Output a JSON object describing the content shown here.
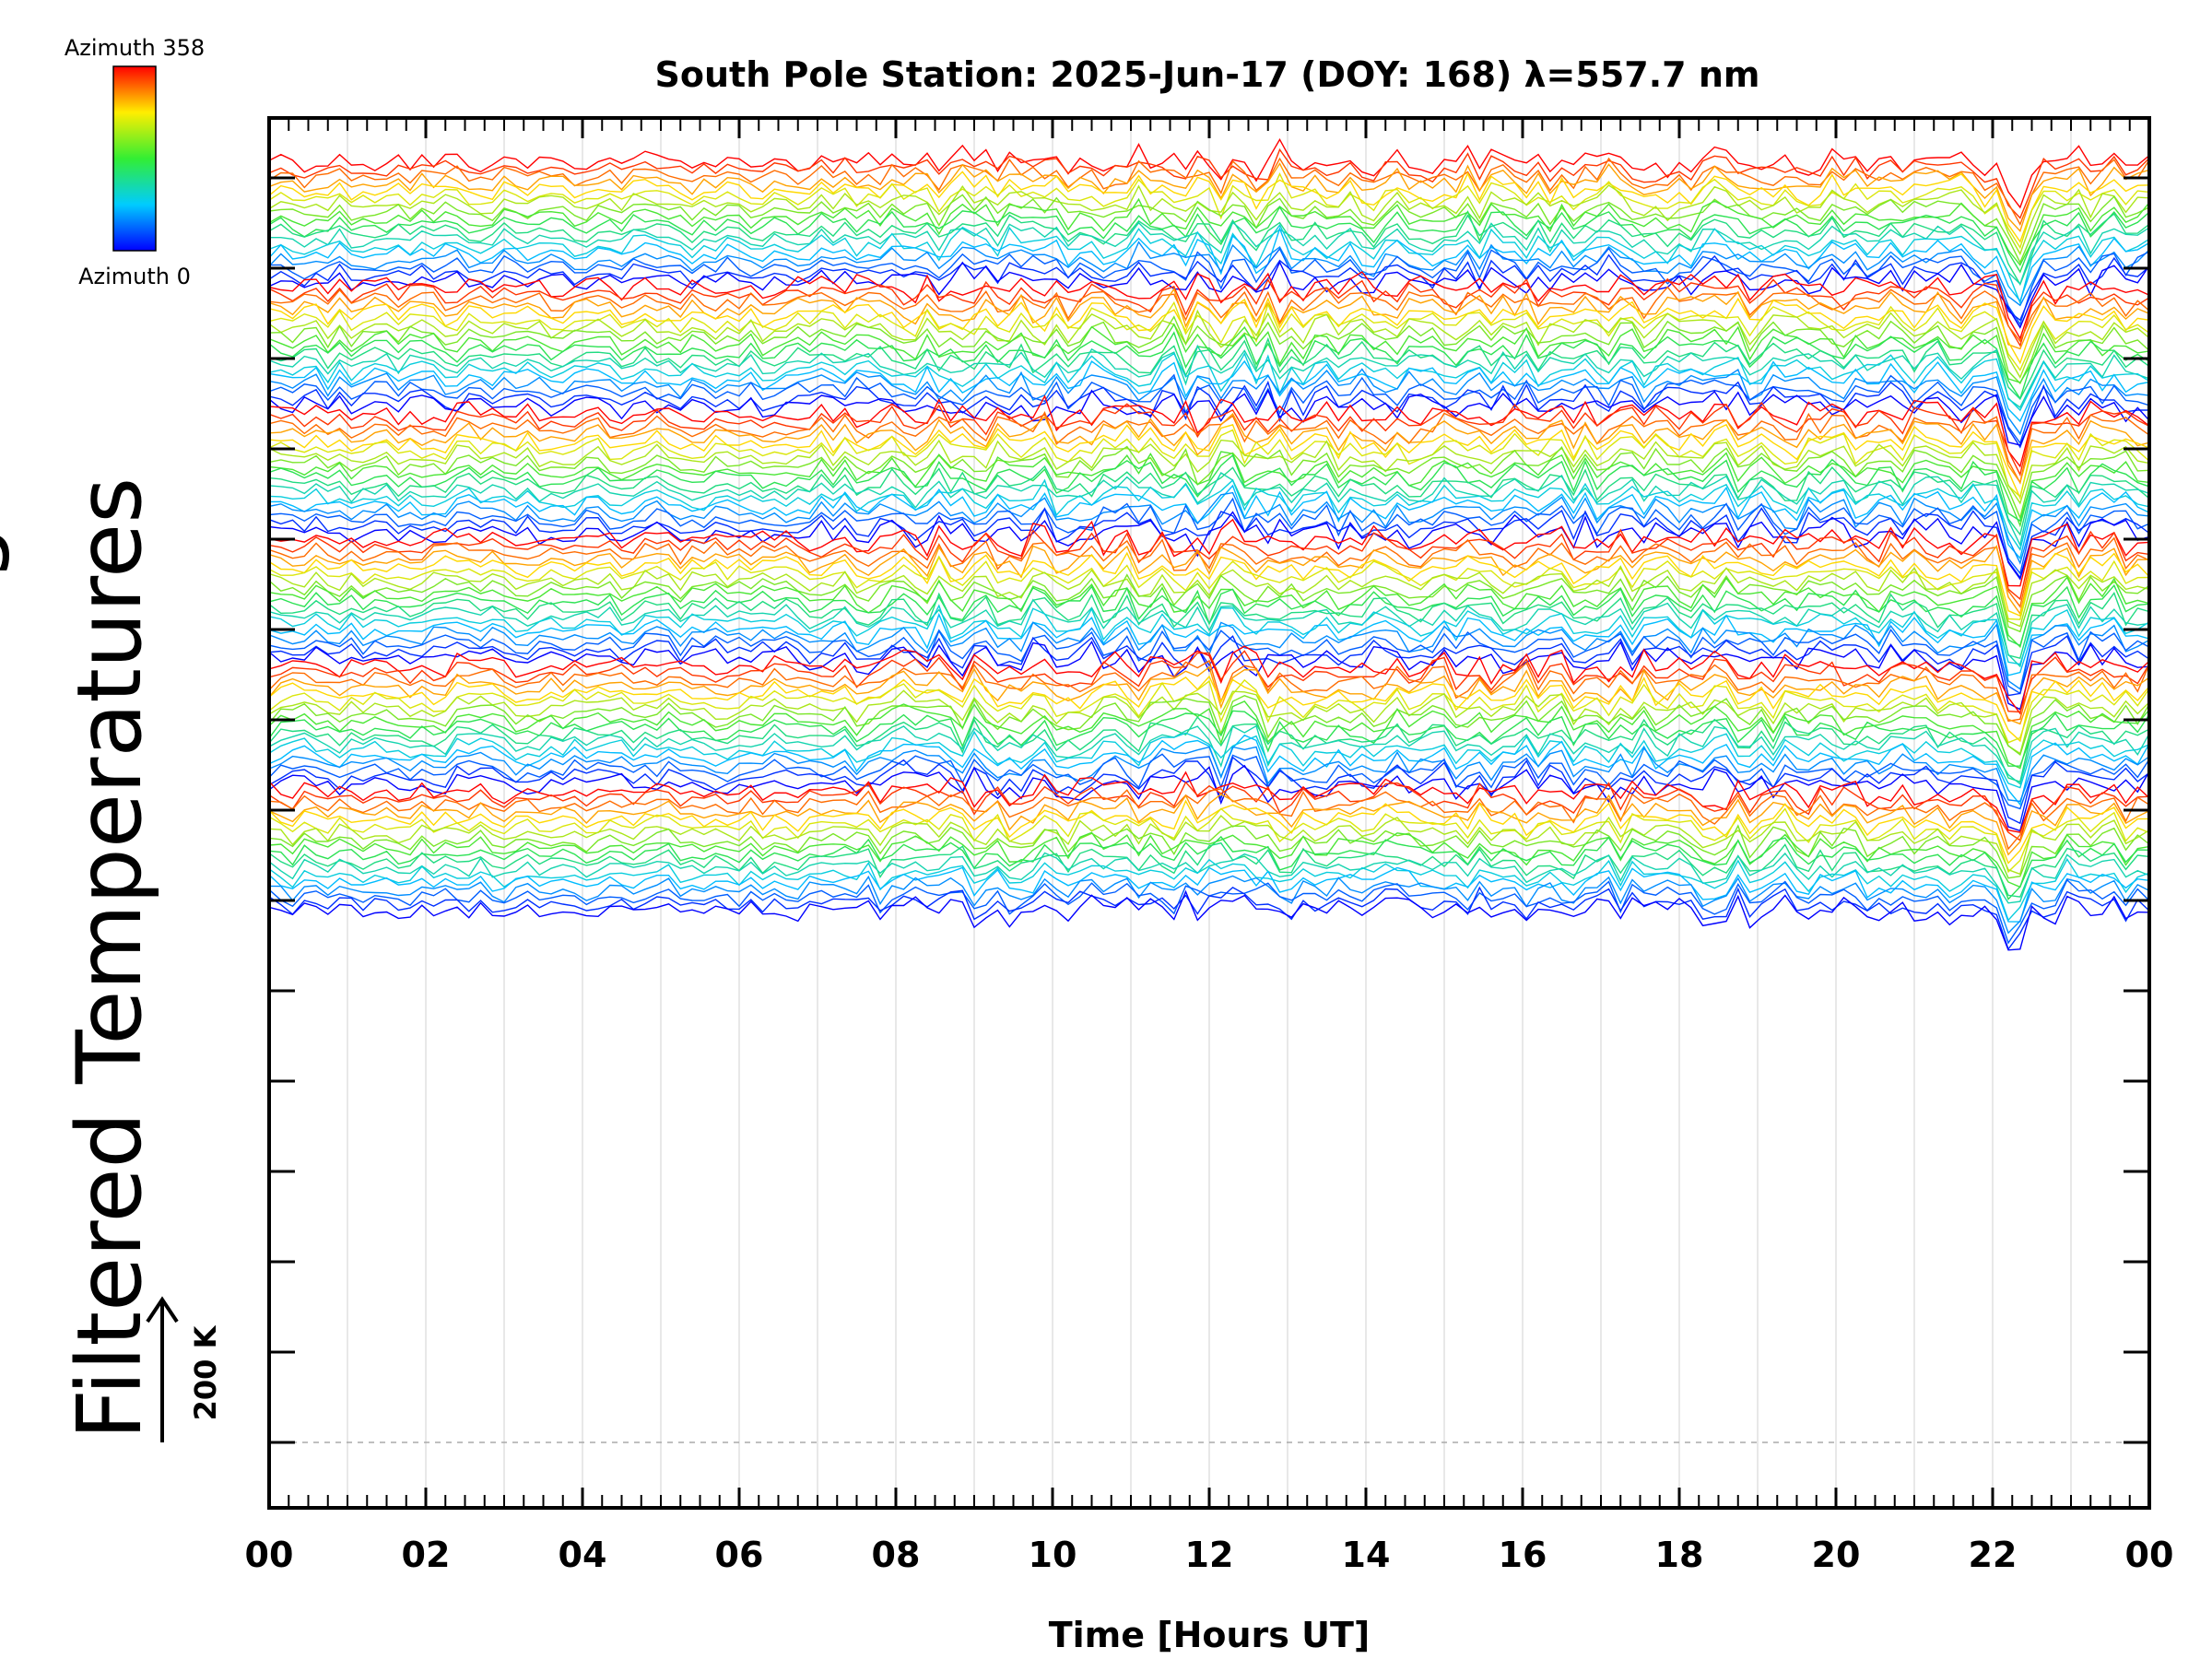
{
  "chart_data": {
    "type": "line",
    "title": "South Pole Station: 2025-Jun-17 (DOY: 168) λ=557.7 nm",
    "xlabel": "Time [Hours UT]",
    "ylabel": "Filtered Temperatures",
    "ylabel_clipped": "g",
    "x_tick_labels": [
      "00",
      "02",
      "04",
      "06",
      "08",
      "10",
      "12",
      "14",
      "16",
      "18",
      "20",
      "22",
      "00"
    ],
    "xlim": [
      0,
      24
    ],
    "colorbar": {
      "top_label": "Azimuth 358",
      "bottom_label": "Azimuth 0",
      "colormap": "rainbow (blue → cyan → green → yellow → red)"
    },
    "scale_bar": {
      "label": "200 K"
    },
    "series_layout": "stacked offset traces, one per azimuth, colored by azimuth",
    "grid": "vertical dotted lines each hour",
    "colors": {
      "azimuth_low": "#0000ff",
      "azimuth_mid": "#00ff00",
      "azimuth_high": "#ff0000"
    }
  }
}
